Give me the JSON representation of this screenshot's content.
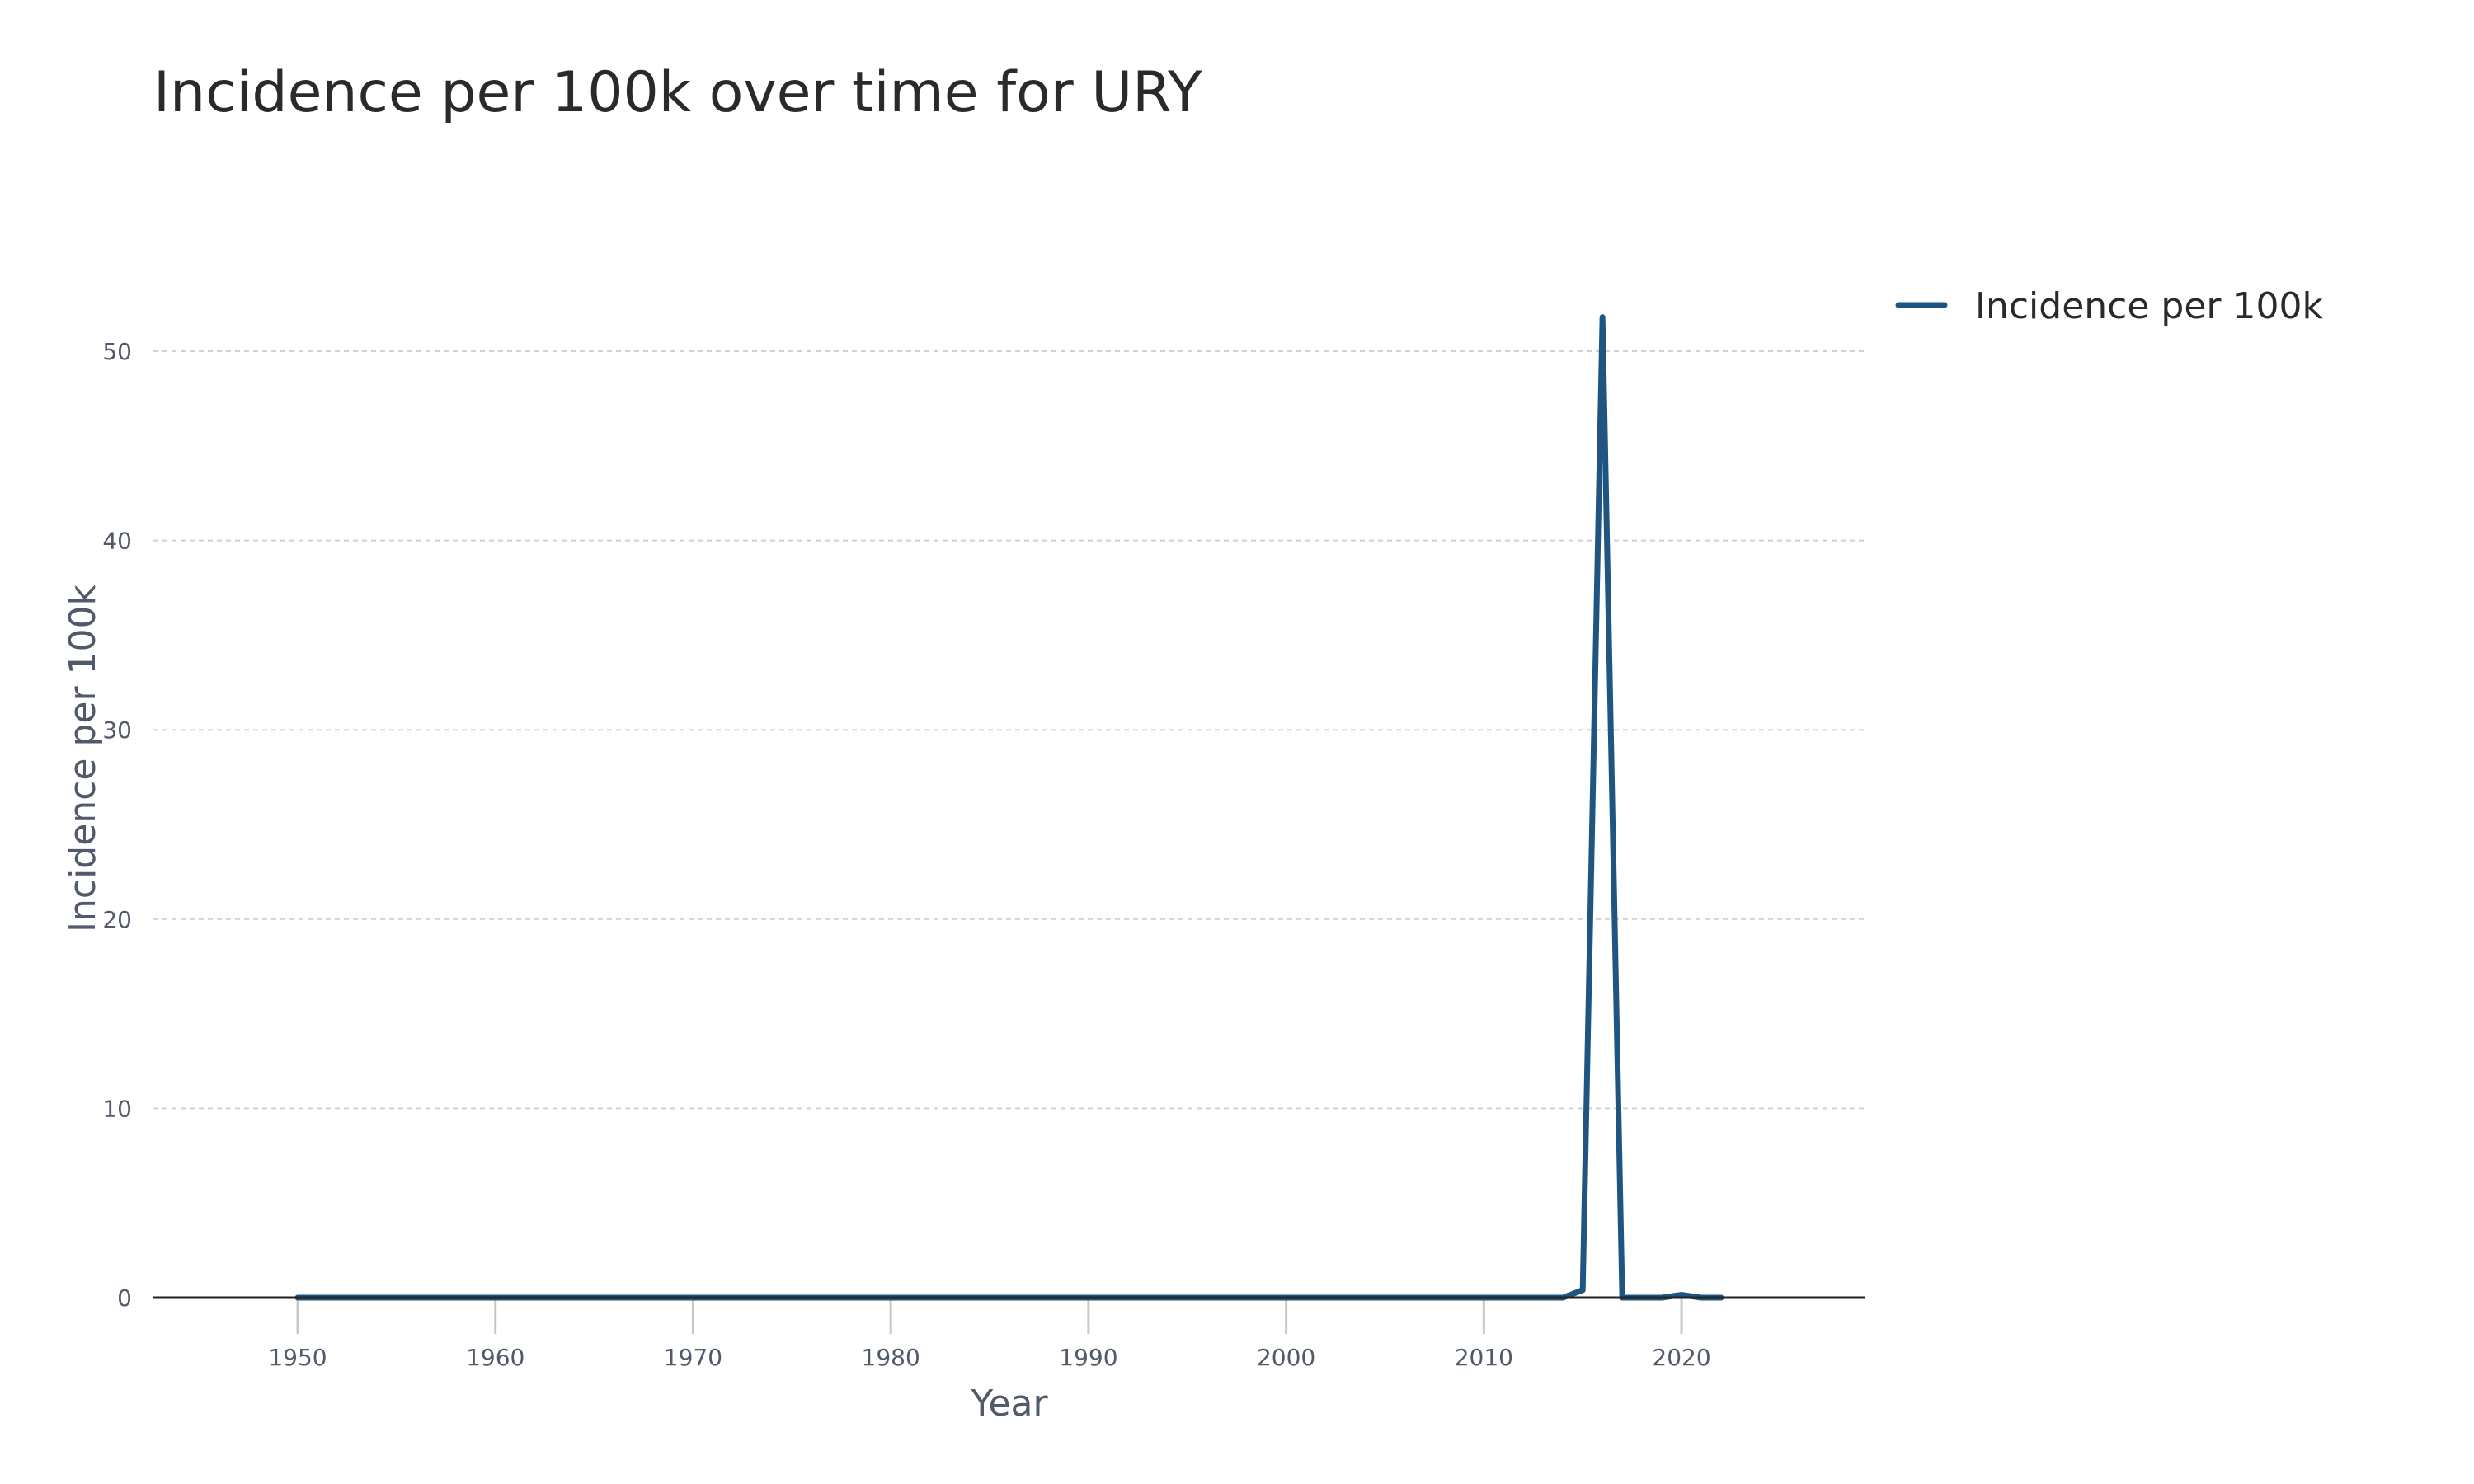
{
  "chart_data": {
    "type": "line",
    "title": "Incidence per 100k over time for URY",
    "xlabel": "Year",
    "ylabel": "Incidence per 100k",
    "xlim": [
      1942.7,
      2029.3
    ],
    "ylim": [
      0,
      56
    ],
    "x_ticks": [
      1950,
      1960,
      1970,
      1980,
      1990,
      2000,
      2010,
      2020
    ],
    "y_ticks": [
      0,
      10,
      20,
      30,
      40,
      50
    ],
    "grid": "horizontal dashed",
    "legend_position": "top-right",
    "colors": {
      "series": "#1f5580",
      "axis_text": "#505a6a",
      "grid": "#d0d0d0"
    },
    "series": [
      {
        "name": "Incidence per 100k",
        "x": [
          1950,
          1951,
          1952,
          1953,
          1954,
          1955,
          1956,
          1957,
          1958,
          1959,
          1960,
          1961,
          1962,
          1963,
          1964,
          1965,
          1966,
          1967,
          1968,
          1969,
          1970,
          1971,
          1972,
          1973,
          1974,
          1975,
          1976,
          1977,
          1978,
          1979,
          1980,
          1981,
          1982,
          1983,
          1984,
          1985,
          1986,
          1987,
          1988,
          1989,
          1990,
          1991,
          1992,
          1993,
          1994,
          1995,
          1996,
          1997,
          1998,
          1999,
          2000,
          2001,
          2002,
          2003,
          2004,
          2005,
          2006,
          2007,
          2008,
          2009,
          2010,
          2011,
          2012,
          2013,
          2014,
          2015,
          2016,
          2017,
          2018,
          2019,
          2020,
          2021,
          2022
        ],
        "y": [
          0,
          0,
          0,
          0,
          0,
          0,
          0,
          0,
          0,
          0,
          0,
          0,
          0,
          0,
          0,
          0,
          0,
          0,
          0,
          0,
          0,
          0,
          0,
          0,
          0,
          0,
          0,
          0,
          0,
          0,
          0,
          0,
          0,
          0,
          0,
          0,
          0,
          0,
          0,
          0,
          0,
          0,
          0,
          0,
          0,
          0,
          0,
          0,
          0,
          0,
          0,
          0,
          0,
          0,
          0,
          0,
          0,
          0,
          0,
          0,
          0,
          0,
          0,
          0,
          0,
          0.4,
          51.8,
          0,
          0,
          0,
          0.15,
          0,
          0
        ]
      }
    ]
  }
}
